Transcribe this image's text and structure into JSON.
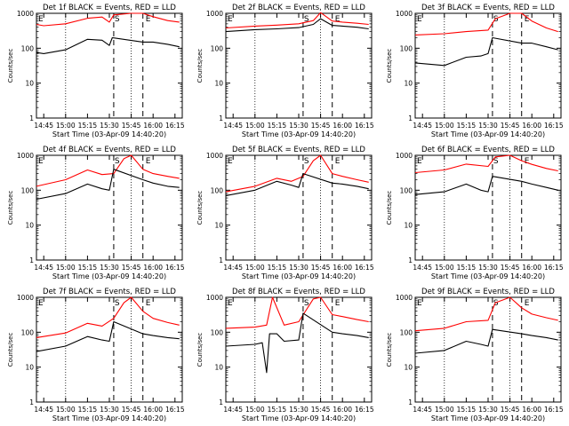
{
  "figure": {
    "start_time_label": "Start Time (03-Apr-09 14:40:20)",
    "y_axis_label": "Counts/sec",
    "x_tick_labels": [
      "14:45",
      "15:00",
      "15:15",
      "15:30",
      "15:45",
      "16:00",
      "16:15"
    ],
    "y_tick_labels": [
      "1",
      "10",
      "100",
      "1000"
    ],
    "marker_labels": {
      "start": "S",
      "end": "E",
      "left": "E"
    },
    "colors": {
      "events": "#000000",
      "lld": "#ff0000",
      "axes": "#000000"
    }
  },
  "chart_data": [
    {
      "type": "line",
      "title": "Det 1f BLACK = Events, RED = LLD",
      "xlim": [
        "14:40",
        "16:20"
      ],
      "ylim": [
        1,
        1000
      ],
      "yscale": "log",
      "dotted_x": [
        "15:00",
        "15:45"
      ],
      "dashed_x": [
        "15:33",
        "15:53"
      ],
      "series": [
        {
          "color": "#ff0000",
          "points": [
            [
              "14:40",
              480
            ],
            [
              "14:45",
              440
            ],
            [
              "15:00",
              500
            ],
            [
              "15:15",
              720
            ],
            [
              "15:25",
              780
            ],
            [
              "15:30",
              560
            ],
            [
              "15:33",
              900
            ],
            [
              "15:45",
              1000
            ],
            [
              "15:53",
              1000
            ],
            [
              "16:00",
              800
            ],
            [
              "16:10",
              620
            ],
            [
              "16:18",
              560
            ]
          ]
        },
        {
          "color": "#000000",
          "points": [
            [
              "14:40",
              75
            ],
            [
              "14:45",
              70
            ],
            [
              "15:00",
              90
            ],
            [
              "15:15",
              180
            ],
            [
              "15:25",
              170
            ],
            [
              "15:30",
              120
            ],
            [
              "15:32",
              200
            ],
            [
              "15:53",
              150
            ],
            [
              "16:00",
              150
            ],
            [
              "16:10",
              130
            ],
            [
              "16:18",
              110
            ]
          ]
        }
      ]
    },
    {
      "type": "line",
      "title": "Det 2f BLACK = Events, RED = LLD",
      "xlim": [
        "14:40",
        "16:20"
      ],
      "ylim": [
        1,
        1000
      ],
      "yscale": "log",
      "dotted_x": [
        "15:00",
        "15:45"
      ],
      "dashed_x": [
        "15:33",
        "15:53"
      ],
      "series": [
        {
          "color": "#ff0000",
          "points": [
            [
              "14:40",
              380
            ],
            [
              "15:00",
              430
            ],
            [
              "15:15",
              460
            ],
            [
              "15:30",
              500
            ],
            [
              "15:40",
              620
            ],
            [
              "15:45",
              1050
            ],
            [
              "15:53",
              600
            ],
            [
              "16:00",
              560
            ],
            [
              "16:10",
              520
            ],
            [
              "16:18",
              480
            ]
          ]
        },
        {
          "color": "#000000",
          "points": [
            [
              "14:40",
              300
            ],
            [
              "15:00",
              340
            ],
            [
              "15:15",
              360
            ],
            [
              "15:30",
              390
            ],
            [
              "15:40",
              480
            ],
            [
              "15:45",
              700
            ],
            [
              "15:53",
              450
            ],
            [
              "16:00",
              430
            ],
            [
              "16:10",
              400
            ],
            [
              "16:18",
              360
            ]
          ]
        }
      ]
    },
    {
      "type": "line",
      "title": "Det 3f BLACK = Events, RED = LLD",
      "xlim": [
        "14:40",
        "16:20"
      ],
      "ylim": [
        1,
        1000
      ],
      "yscale": "log",
      "dotted_x": [
        "15:00",
        "15:45"
      ],
      "dashed_x": [
        "15:33",
        "15:53"
      ],
      "series": [
        {
          "color": "#ff0000",
          "points": [
            [
              "14:40",
              240
            ],
            [
              "15:00",
              260
            ],
            [
              "15:15",
              300
            ],
            [
              "15:30",
              330
            ],
            [
              "15:35",
              700
            ],
            [
              "15:45",
              1000
            ],
            [
              "15:53",
              1000
            ],
            [
              "16:00",
              600
            ],
            [
              "16:10",
              380
            ],
            [
              "16:18",
              300
            ]
          ]
        },
        {
          "color": "#000000",
          "points": [
            [
              "14:40",
              38
            ],
            [
              "15:00",
              32
            ],
            [
              "15:15",
              55
            ],
            [
              "15:25",
              60
            ],
            [
              "15:30",
              70
            ],
            [
              "15:33",
              200
            ],
            [
              "15:53",
              140
            ],
            [
              "16:00",
              140
            ],
            [
              "16:10",
              110
            ],
            [
              "16:18",
              90
            ]
          ]
        }
      ]
    },
    {
      "type": "line",
      "title": "Det 4f BLACK = Events, RED = LLD",
      "xlim": [
        "14:40",
        "16:20"
      ],
      "ylim": [
        1,
        1000
      ],
      "yscale": "log",
      "dotted_x": [
        "15:00",
        "15:45"
      ],
      "dashed_x": [
        "15:33",
        "15:53"
      ],
      "series": [
        {
          "color": "#ff0000",
          "points": [
            [
              "14:40",
              130
            ],
            [
              "15:00",
              200
            ],
            [
              "15:15",
              380
            ],
            [
              "15:25",
              280
            ],
            [
              "15:33",
              300
            ],
            [
              "15:40",
              800
            ],
            [
              "15:45",
              1000
            ],
            [
              "15:53",
              400
            ],
            [
              "16:00",
              300
            ],
            [
              "16:10",
              250
            ],
            [
              "16:18",
              220
            ]
          ]
        },
        {
          "color": "#000000",
          "points": [
            [
              "14:40",
              55
            ],
            [
              "15:00",
              80
            ],
            [
              "15:15",
              150
            ],
            [
              "15:25",
              110
            ],
            [
              "15:30",
              100
            ],
            [
              "15:33",
              400
            ],
            [
              "15:53",
              200
            ],
            [
              "16:00",
              160
            ],
            [
              "16:10",
              130
            ],
            [
              "16:18",
              120
            ]
          ]
        }
      ]
    },
    {
      "type": "line",
      "title": "Det 5f BLACK = Events, RED = LLD",
      "xlim": [
        "14:40",
        "16:20"
      ],
      "ylim": [
        1,
        1000
      ],
      "yscale": "log",
      "dotted_x": [
        "15:00",
        "15:45"
      ],
      "dashed_x": [
        "15:33",
        "15:53"
      ],
      "series": [
        {
          "color": "#ff0000",
          "points": [
            [
              "14:40",
              90
            ],
            [
              "15:00",
              130
            ],
            [
              "15:15",
              220
            ],
            [
              "15:25",
              180
            ],
            [
              "15:33",
              250
            ],
            [
              "15:40",
              700
            ],
            [
              "15:45",
              1000
            ],
            [
              "15:53",
              300
            ],
            [
              "16:00",
              250
            ],
            [
              "16:10",
              200
            ],
            [
              "16:18",
              170
            ]
          ]
        },
        {
          "color": "#000000",
          "points": [
            [
              "14:40",
              70
            ],
            [
              "15:00",
              100
            ],
            [
              "15:15",
              180
            ],
            [
              "15:25",
              140
            ],
            [
              "15:30",
              120
            ],
            [
              "15:33",
              300
            ],
            [
              "15:53",
              160
            ],
            [
              "16:00",
              150
            ],
            [
              "16:10",
              130
            ],
            [
              "16:18",
              110
            ]
          ]
        }
      ]
    },
    {
      "type": "line",
      "title": "Det 6f BLACK = Events, RED = LLD",
      "xlim": [
        "14:40",
        "16:20"
      ],
      "ylim": [
        1,
        1000
      ],
      "yscale": "log",
      "dotted_x": [
        "15:00",
        "15:45"
      ],
      "dashed_x": [
        "15:33",
        "15:53"
      ],
      "series": [
        {
          "color": "#ff0000",
          "points": [
            [
              "14:40",
              320
            ],
            [
              "15:00",
              380
            ],
            [
              "15:15",
              560
            ],
            [
              "15:30",
              480
            ],
            [
              "15:35",
              900
            ],
            [
              "15:45",
              1000
            ],
            [
              "15:53",
              700
            ],
            [
              "16:00",
              550
            ],
            [
              "16:10",
              420
            ],
            [
              "16:18",
              360
            ]
          ]
        },
        {
          "color": "#000000",
          "points": [
            [
              "14:40",
              75
            ],
            [
              "15:00",
              90
            ],
            [
              "15:15",
              150
            ],
            [
              "15:25",
              100
            ],
            [
              "15:30",
              90
            ],
            [
              "15:33",
              250
            ],
            [
              "15:53",
              180
            ],
            [
              "16:00",
              150
            ],
            [
              "16:10",
              120
            ],
            [
              "16:18",
              100
            ]
          ]
        }
      ]
    },
    {
      "type": "line",
      "title": "Det 7f BLACK = Events, RED = LLD",
      "xlim": [
        "14:40",
        "16:20"
      ],
      "ylim": [
        1,
        1000
      ],
      "yscale": "log",
      "dotted_x": [
        "15:00",
        "15:45"
      ],
      "dashed_x": [
        "15:33",
        "15:53"
      ],
      "series": [
        {
          "color": "#ff0000",
          "points": [
            [
              "14:40",
              70
            ],
            [
              "15:00",
              95
            ],
            [
              "15:15",
              180
            ],
            [
              "15:25",
              150
            ],
            [
              "15:33",
              250
            ],
            [
              "15:40",
              700
            ],
            [
              "15:45",
              1000
            ],
            [
              "15:53",
              400
            ],
            [
              "16:00",
              250
            ],
            [
              "16:10",
              190
            ],
            [
              "16:18",
              160
            ]
          ]
        },
        {
          "color": "#000000",
          "points": [
            [
              "14:40",
              28
            ],
            [
              "15:00",
              40
            ],
            [
              "15:15",
              75
            ],
            [
              "15:25",
              60
            ],
            [
              "15:30",
              55
            ],
            [
              "15:33",
              200
            ],
            [
              "15:53",
              90
            ],
            [
              "16:00",
              80
            ],
            [
              "16:10",
              70
            ],
            [
              "16:18",
              65
            ]
          ]
        }
      ]
    },
    {
      "type": "line",
      "title": "Det 8f BLACK = Events, RED = LLD",
      "xlim": [
        "14:40",
        "16:20"
      ],
      "ylim": [
        1,
        1000
      ],
      "yscale": "log",
      "dotted_x": [
        "15:00",
        "15:45"
      ],
      "dashed_x": [
        "15:33",
        "15:53"
      ],
      "series": [
        {
          "color": "#ff0000",
          "points": [
            [
              "14:40",
              130
            ],
            [
              "15:00",
              140
            ],
            [
              "15:08",
              160
            ],
            [
              "15:12",
              1000
            ],
            [
              "15:20",
              160
            ],
            [
              "15:30",
              200
            ],
            [
              "15:40",
              900
            ],
            [
              "15:45",
              1000
            ],
            [
              "15:53",
              320
            ],
            [
              "16:00",
              280
            ],
            [
              "16:10",
              230
            ],
            [
              "16:18",
              200
            ]
          ]
        },
        {
          "color": "#000000",
          "points": [
            [
              "14:40",
              40
            ],
            [
              "15:00",
              45
            ],
            [
              "15:05",
              50
            ],
            [
              "15:08",
              7
            ],
            [
              "15:10",
              90
            ],
            [
              "15:15",
              90
            ],
            [
              "15:20",
              55
            ],
            [
              "15:30",
              60
            ],
            [
              "15:33",
              350
            ],
            [
              "15:53",
              100
            ],
            [
              "16:00",
              90
            ],
            [
              "16:10",
              80
            ],
            [
              "16:18",
              70
            ]
          ]
        }
      ]
    },
    {
      "type": "line",
      "title": "Det 9f BLACK = Events, RED = LLD",
      "xlim": [
        "14:40",
        "16:20"
      ],
      "ylim": [
        1,
        1000
      ],
      "yscale": "log",
      "dotted_x": [
        "15:00",
        "15:45"
      ],
      "dashed_x": [
        "15:33",
        "15:53"
      ],
      "series": [
        {
          "color": "#ff0000",
          "points": [
            [
              "14:40",
              110
            ],
            [
              "15:00",
              130
            ],
            [
              "15:15",
              200
            ],
            [
              "15:30",
              220
            ],
            [
              "15:35",
              700
            ],
            [
              "15:45",
              1000
            ],
            [
              "15:53",
              500
            ],
            [
              "16:00",
              330
            ],
            [
              "16:10",
              260
            ],
            [
              "16:18",
              220
            ]
          ]
        },
        {
          "color": "#000000",
          "points": [
            [
              "14:40",
              25
            ],
            [
              "15:00",
              30
            ],
            [
              "15:15",
              55
            ],
            [
              "15:25",
              45
            ],
            [
              "15:30",
              40
            ],
            [
              "15:33",
              120
            ],
            [
              "15:53",
              90
            ],
            [
              "16:00",
              80
            ],
            [
              "16:10",
              70
            ],
            [
              "16:18",
              60
            ]
          ]
        }
      ]
    }
  ]
}
